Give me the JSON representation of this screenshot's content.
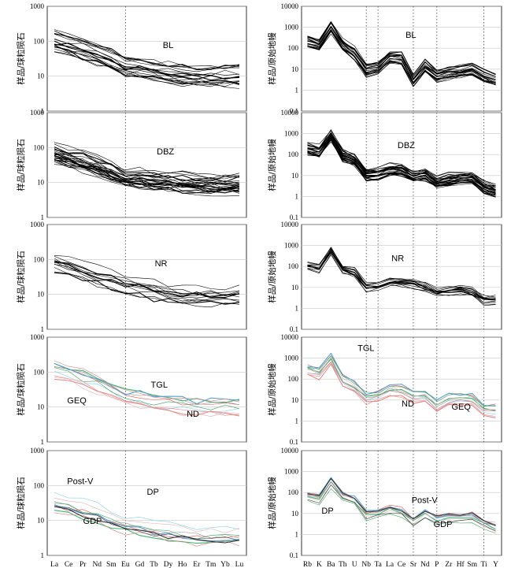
{
  "figure": {
    "left_xticks": [
      "La",
      "Ce",
      "Pr",
      "Nd",
      "Sm",
      "Eu",
      "Gd",
      "Tb",
      "Dy",
      "Ho",
      "Er",
      "Tm",
      "Yb",
      "Lu"
    ],
    "right_xticks": [
      "Rb",
      "K",
      "Ba",
      "Th",
      "U",
      "Nb",
      "Ta",
      "La",
      "Ce",
      "Sr",
      "Nd",
      "P",
      "Zr",
      "Hf",
      "Sm",
      "Ti",
      "Y"
    ],
    "left_ylabel": "样品/球粒陨石",
    "right_ylabel": "样品/原始地幔"
  },
  "chart_data": [
    {
      "id": "bl-ree",
      "type": "line",
      "ylabel": "样品/球粒陨石",
      "yticks": [
        "1",
        "10",
        "100",
        "1000"
      ],
      "ylim": [
        1,
        1000
      ],
      "log_scale": true,
      "annotations": [
        "BL"
      ],
      "series": [
        {
          "color": "#000000",
          "count": 18,
          "values": [
            100,
            78,
            58,
            43,
            30,
            18,
            17,
            14,
            12,
            11,
            10,
            10,
            10,
            10
          ]
        }
      ]
    },
    {
      "id": "bl-spider",
      "type": "line",
      "ylabel": "样品/原始地幔",
      "yticks": [
        "0.1",
        "1",
        "10",
        "100",
        "1000",
        "10000"
      ],
      "ylim": [
        0.1,
        10000
      ],
      "log_scale": true,
      "annotations": [
        "BL"
      ],
      "series": [
        {
          "color": "#000000",
          "count": 18,
          "values": [
            220,
            160,
            1100,
            150,
            60,
            9,
            12,
            40,
            35,
            3,
            15,
            5,
            7,
            8,
            10,
            5,
            3
          ]
        }
      ]
    },
    {
      "id": "dbz-ree",
      "type": "line",
      "ylabel": "样品/球粒陨石",
      "yticks": [
        "1",
        "10",
        "100",
        "1000"
      ],
      "ylim": [
        1,
        1000
      ],
      "log_scale": true,
      "annotations": [
        "DBZ"
      ],
      "series": [
        {
          "color": "#000000",
          "count": 25,
          "values": [
            70,
            55,
            40,
            29,
            20,
            13,
            13,
            12,
            11,
            10,
            9,
            9,
            9,
            9
          ]
        }
      ]
    },
    {
      "id": "dbz-spider",
      "type": "line",
      "ylabel": "样品/原始地幔",
      "yticks": [
        "0.1",
        "1",
        "10",
        "100",
        "1000",
        "10000"
      ],
      "ylim": [
        0.1,
        10000
      ],
      "log_scale": true,
      "annotations": [
        "DBZ"
      ],
      "series": [
        {
          "color": "#000000",
          "count": 25,
          "values": [
            200,
            150,
            900,
            100,
            60,
            12,
            13,
            20,
            20,
            10,
            12,
            5,
            7,
            8,
            8,
            3,
            2
          ]
        }
      ]
    },
    {
      "id": "nr-ree",
      "type": "line",
      "ylabel": "样品/球粒陨石",
      "yticks": [
        "1",
        "10",
        "100",
        "1000"
      ],
      "ylim": [
        1,
        1000
      ],
      "log_scale": true,
      "annotations": [
        "NR"
      ],
      "series": [
        {
          "color": "#000000",
          "count": 12,
          "values": [
            80,
            62,
            45,
            35,
            27,
            18,
            16,
            13,
            11,
            9,
            9,
            9,
            9,
            9
          ]
        }
      ]
    },
    {
      "id": "nr-spider",
      "type": "line",
      "ylabel": "样品/原始地幔",
      "yticks": [
        "0.1",
        "1",
        "10",
        "100",
        "1000",
        "10000"
      ],
      "ylim": [
        0.1,
        10000
      ],
      "log_scale": true,
      "annotations": [
        "NR"
      ],
      "series": [
        {
          "color": "#000000",
          "count": 12,
          "values": [
            130,
            100,
            700,
            90,
            60,
            12,
            14,
            22,
            22,
            18,
            12,
            7,
            8,
            9,
            7,
            3,
            3
          ]
        }
      ]
    },
    {
      "id": "tgl-geq-nd-ree",
      "type": "line",
      "ylabel": "样品/球粒陨石",
      "yticks": [
        "1",
        "10",
        "100",
        "1000"
      ],
      "ylim": [
        1,
        1000
      ],
      "log_scale": true,
      "annotations": [
        "TGL",
        "GEQ",
        "ND"
      ],
      "series": [
        {
          "color": "#e68a8a",
          "count": 10,
          "values": [
            120,
            95,
            70,
            50,
            32,
            20,
            18,
            15,
            13,
            12,
            11,
            11,
            11,
            11
          ]
        }
      ]
    },
    {
      "id": "tgl-geq-nd-spider",
      "type": "line",
      "ylabel": "样品/原始地幔",
      "yticks": [
        "0.1",
        "1",
        "10",
        "100",
        "1000",
        "10000"
      ],
      "ylim": [
        0.1,
        10000
      ],
      "log_scale": true,
      "annotations": [
        "TGL",
        "GEQ",
        "ND"
      ],
      "series": [
        {
          "color": "#e68a8a",
          "count": 10,
          "values": [
            250,
            180,
            900,
            80,
            40,
            12,
            15,
            30,
            25,
            12,
            15,
            5,
            10,
            10,
            10,
            3,
            3
          ]
        }
      ]
    },
    {
      "id": "post-v-dp-gdp-ree",
      "type": "line",
      "ylabel": "样品/球粒陨石",
      "yticks": [
        "1",
        "10",
        "100",
        "1000"
      ],
      "ylim": [
        1,
        1000
      ],
      "log_scale": true,
      "annotations": [
        "Post-V",
        "DP",
        "GDP"
      ],
      "series": [
        {
          "color": "#333333",
          "count": 10,
          "values": [
            35,
            28,
            22,
            17,
            12,
            8,
            7,
            6,
            5,
            4.5,
            4,
            4,
            4,
            4
          ]
        }
      ]
    },
    {
      "id": "post-v-dp-gdp-spider",
      "type": "line",
      "ylabel": "样品/原始地幔",
      "yticks": [
        "0.1",
        "1",
        "10",
        "100",
        "1000",
        "10000"
      ],
      "ylim": [
        0.1,
        10000
      ],
      "log_scale": true,
      "annotations": [
        "Post-V",
        "DP",
        "GDP"
      ],
      "series": [
        {
          "color": "#333333",
          "count": 10,
          "values": [
            60,
            45,
            300,
            60,
            40,
            8,
            10,
            15,
            12,
            4,
            10,
            5,
            6,
            6,
            7,
            3,
            2
          ]
        }
      ]
    }
  ]
}
